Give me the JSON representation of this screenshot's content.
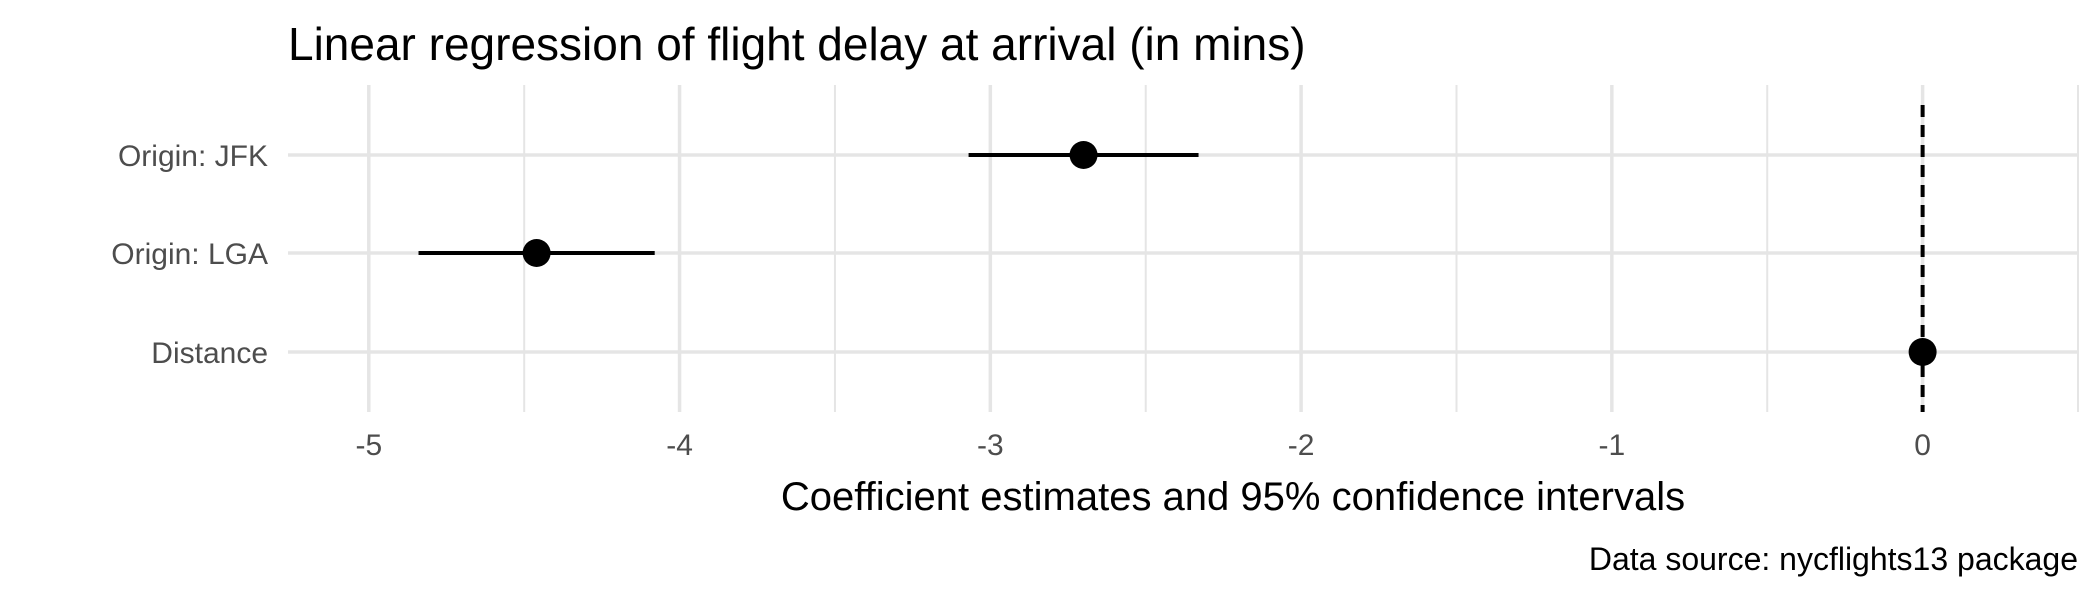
{
  "chart_data": {
    "type": "scatter",
    "title": "Linear regression of flight delay at arrival (in mins)",
    "xlabel": "Coefficient estimates and 95% confidence intervals",
    "ylabel": "",
    "caption": "Data source: nycflights13 package",
    "categories": [
      "Origin: JFK",
      "Origin: LGA",
      "Distance"
    ],
    "estimates": [
      -2.7,
      -4.46,
      0.0
    ],
    "conf_low": [
      -3.07,
      -4.84,
      -0.0005
    ],
    "conf_high": [
      -2.33,
      -4.08,
      0.0005
    ],
    "x_ticks": [
      -5,
      -4,
      -3,
      -2,
      -1,
      0
    ],
    "x_tick_labels": [
      "-5",
      "-4",
      "-3",
      "-2",
      "-1",
      "0"
    ],
    "xlim": [
      -5.26,
      0.5
    ],
    "reference_line": 0,
    "grid": true,
    "colors": {
      "points": "#000000",
      "grid": "#e5e5e5",
      "tick_text": "#4d4d4d"
    }
  }
}
